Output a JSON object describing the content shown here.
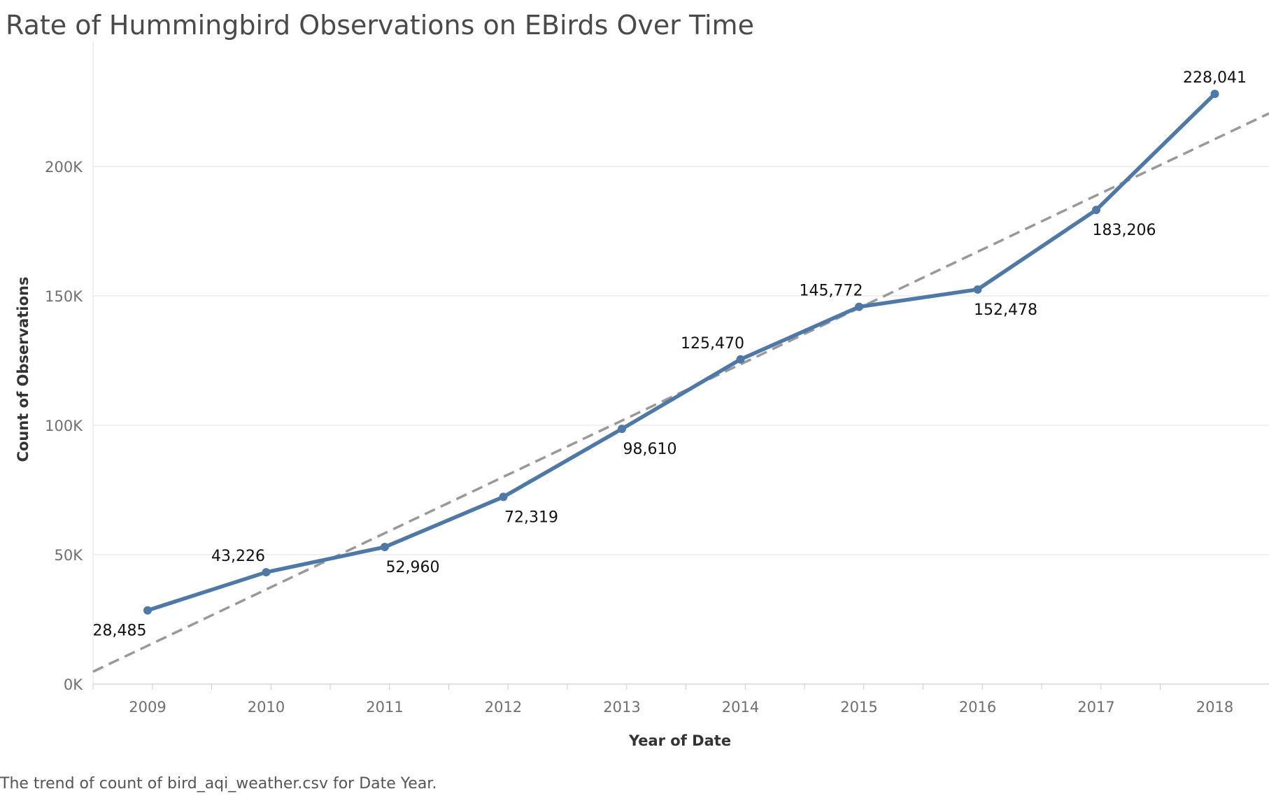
{
  "title": "Rate of Hummingbird Observations on EBirds Over Time",
  "caption": "The trend of count of bird_aqi_weather.csv for Date Year.",
  "colors": {
    "line": "#4e79a7",
    "trend": "#999999",
    "grid": "#ebebeb",
    "title": "#4a4a4a"
  },
  "chart_data": {
    "type": "line",
    "title": "Rate of Hummingbird Observations on EBirds Over Time",
    "xlabel": "Year of Date",
    "ylabel": "Count of Observations",
    "categories": [
      "2009",
      "2010",
      "2011",
      "2012",
      "2013",
      "2014",
      "2015",
      "2016",
      "2017",
      "2018"
    ],
    "series": [
      {
        "values": [
          28485,
          43226,
          52960,
          72319,
          98610,
          125470,
          145772,
          152478,
          183206,
          228041
        ]
      }
    ],
    "data_labels": [
      "28,485",
      "43,226",
      "52,960",
      "72,319",
      "98,610",
      "125,470",
      "145,772",
      "152,478",
      "183,206",
      "228,041"
    ],
    "trend_line": {
      "style": "dashed",
      "start": 14810,
      "slope": 21750
    },
    "yticks": [
      0,
      50000,
      100000,
      150000,
      200000
    ],
    "ytick_labels": [
      "0K",
      "50K",
      "100K",
      "150K",
      "200K"
    ],
    "ylim": [
      0,
      235000
    ],
    "grid": true
  }
}
